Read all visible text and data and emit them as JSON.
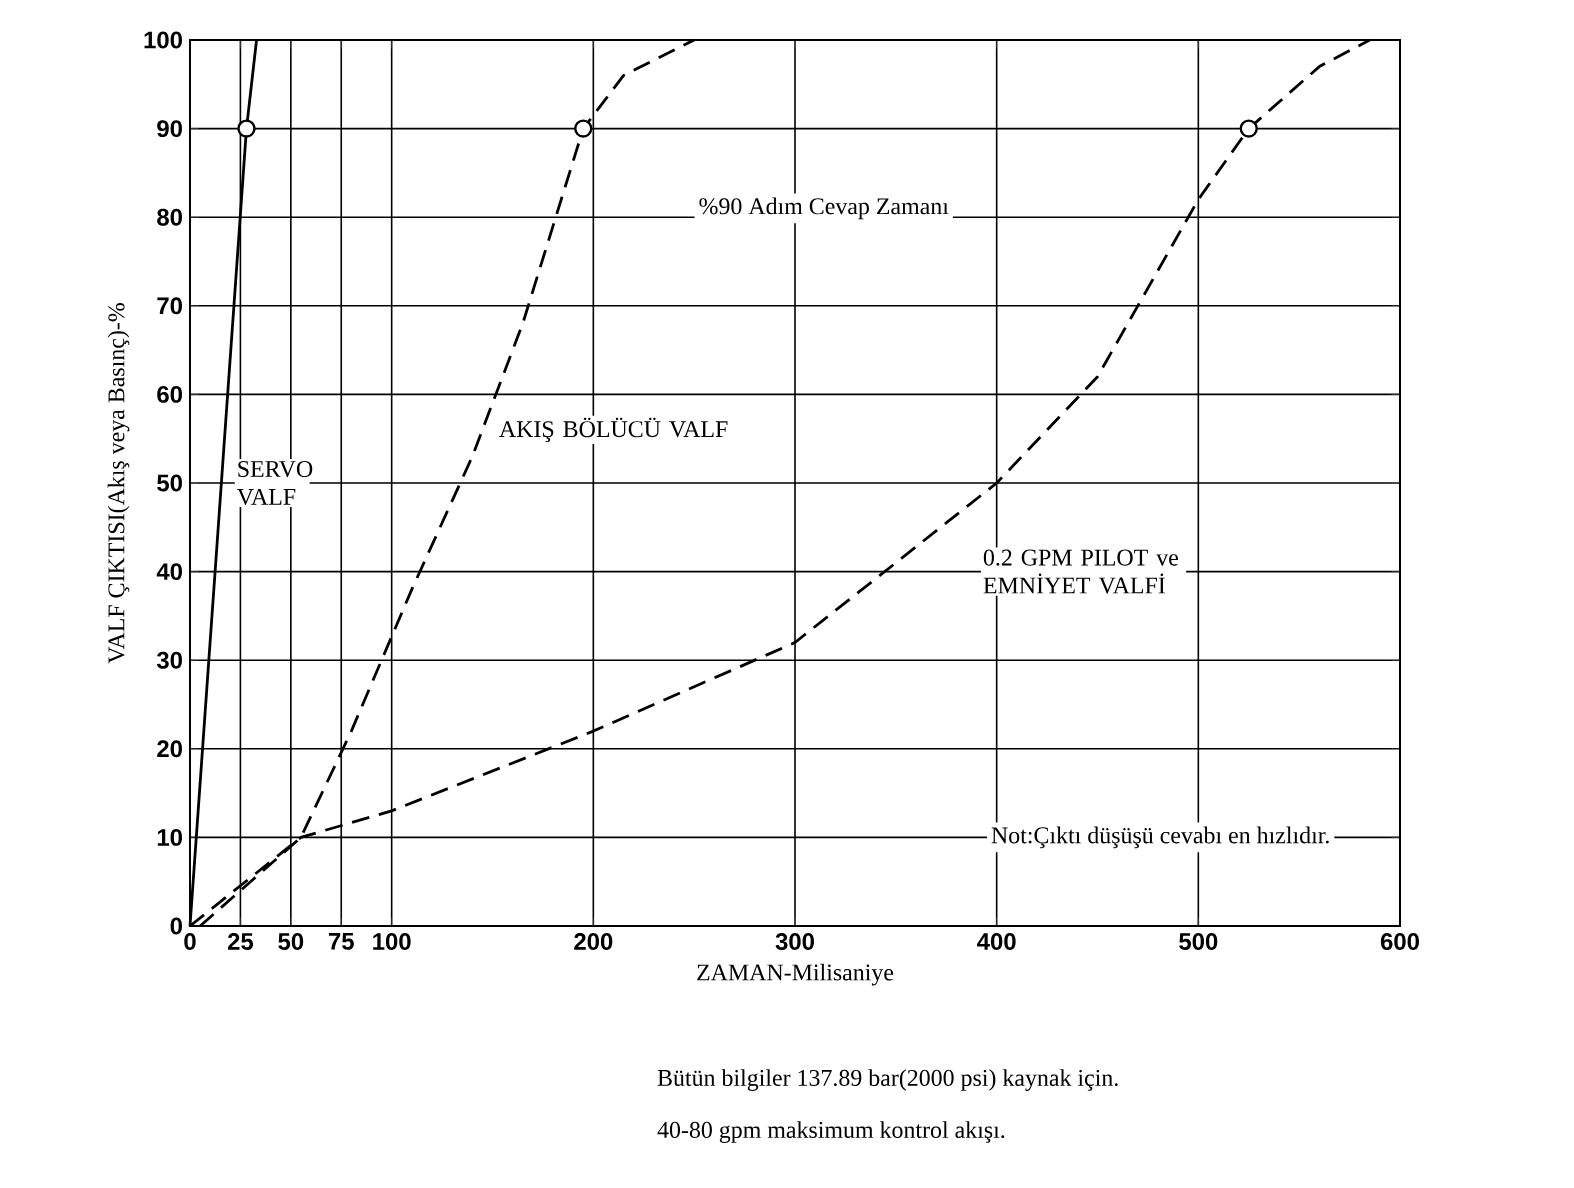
{
  "chart_data": {
    "type": "line",
    "xlabel": "ZAMAN-Milisaniye",
    "ylabel": "VALF ÇIKTISI(Akış veya Basınç)-%",
    "xlim": [
      0,
      600
    ],
    "ylim": [
      0,
      100
    ],
    "xticks": [
      0,
      25,
      50,
      75,
      100,
      200,
      300,
      400,
      500,
      600
    ],
    "yticks": [
      0,
      10,
      20,
      30,
      40,
      50,
      60,
      70,
      80,
      90,
      100
    ],
    "grid": true,
    "series": [
      {
        "name": "SERVO VALF",
        "color": "#000000",
        "line_style": "solid",
        "x": [
          0,
          28,
          33
        ],
        "values": [
          0,
          90,
          100
        ]
      },
      {
        "name": "AKIŞ BÖLÜCÜ VALF",
        "color": "#000000",
        "line_style": "dashed",
        "x": [
          5,
          30,
          55,
          80,
          110,
          140,
          165,
          195,
          215,
          250
        ],
        "values": [
          0,
          5,
          10,
          22,
          38,
          53,
          68,
          90,
          96,
          100
        ]
      },
      {
        "name": "0.2 GPM PILOT ve EMNİYET VALFİ",
        "color": "#000000",
        "line_style": "dashed",
        "x": [
          0,
          55,
          100,
          200,
          300,
          400,
          450,
          500,
          525,
          560,
          585
        ],
        "values": [
          0,
          10,
          13,
          22,
          32,
          50,
          62,
          82,
          90,
          97,
          100
        ]
      },
      {
        "type": "scatter",
        "marker": "circle",
        "color": "#000000",
        "x": [
          28,
          195,
          525
        ],
        "values": [
          90,
          90,
          90
        ]
      }
    ],
    "annotations": [
      "%90 Adım Cevap Zamanı",
      "Not:Çıktı düşüşü cevabı en hızlıdır.",
      "Bütün bilgiler 137.89 bar(2000 psi) kaynak için.",
      "40-80 gpm maksimum kontrol akışı."
    ]
  }
}
